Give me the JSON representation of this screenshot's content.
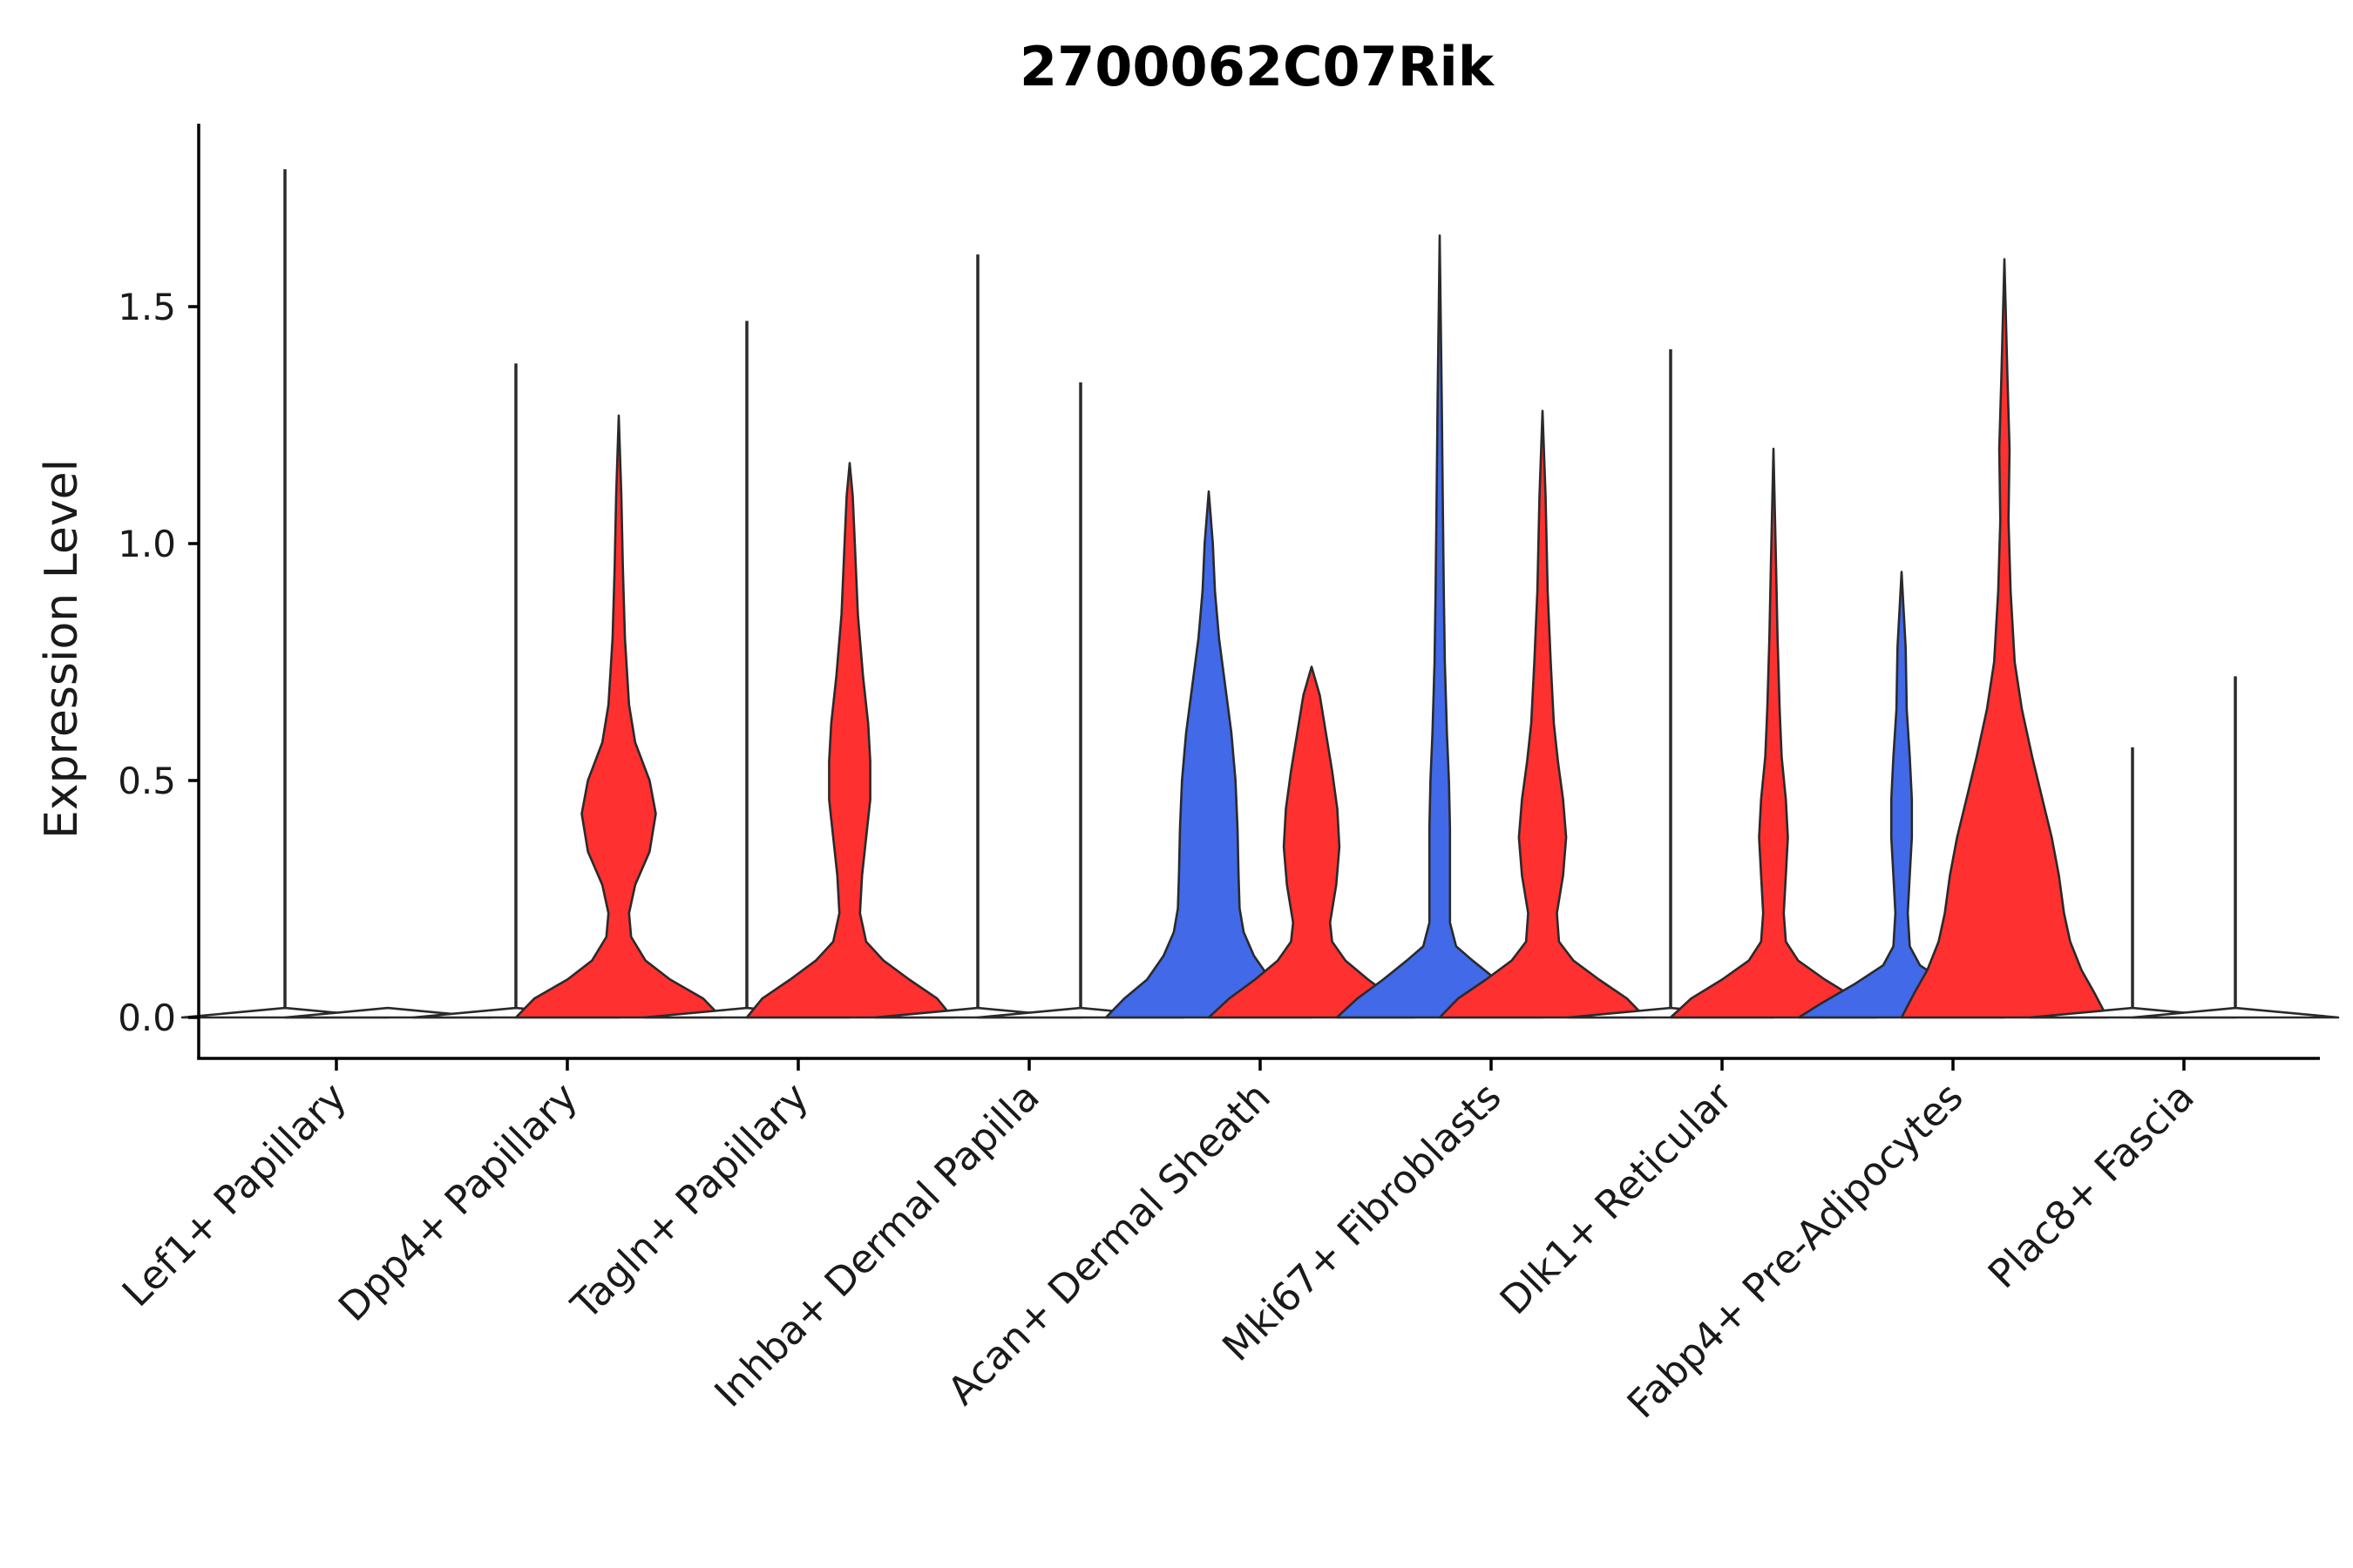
{
  "chart_data": {
    "type": "violin",
    "title": "2700062C07Rik",
    "xlabel": "",
    "ylabel": "Expression Level",
    "ylim": [
      -0.09,
      1.88
    ],
    "yticks": [
      0.0,
      0.5,
      1.0,
      1.5
    ],
    "ytick_labels": [
      "0.0",
      "0.5",
      "1.0",
      "1.5"
    ],
    "grid": false,
    "colors": {
      "blue": "#4169e8",
      "red": "#ff3030",
      "outline": "#2a2a2a"
    },
    "categories": [
      "Lef1+ Papillary",
      "Dpp4+ Papillary",
      "Tagln+ Papillary",
      "Inhba+ Dermal Papilla",
      "Acan+ Dermal Sheath",
      "Mki67+ Fibroblasts",
      "Dlk1+ Reticular",
      "Fabp4+ Pre-Adipocytes",
      "Plac8+ Fascia"
    ],
    "violins": [
      {
        "category": 0,
        "side": "left",
        "color": "none",
        "max": 1.79,
        "profile": [
          [
            0,
            1
          ],
          [
            0.02,
            0
          ]
        ],
        "whisker_min": 0.02
      },
      {
        "category": 0,
        "side": "right",
        "color": "none",
        "max": 0.0,
        "profile": [
          [
            0,
            1
          ],
          [
            0.02,
            0
          ]
        ]
      },
      {
        "category": 1,
        "side": "left",
        "color": "none",
        "max": 1.38,
        "profile": [
          [
            0,
            1
          ],
          [
            0.02,
            0
          ]
        ],
        "whisker_min": 0.02
      },
      {
        "category": 1,
        "side": "right",
        "color": "red",
        "max": 1.27,
        "profile": [
          [
            0,
            1
          ],
          [
            0.04,
            0.82
          ],
          [
            0.08,
            0.5
          ],
          [
            0.12,
            0.26
          ],
          [
            0.17,
            0.12
          ],
          [
            0.22,
            0.1
          ],
          [
            0.28,
            0.16
          ],
          [
            0.35,
            0.3
          ],
          [
            0.43,
            0.36
          ],
          [
            0.5,
            0.3
          ],
          [
            0.58,
            0.16
          ],
          [
            0.66,
            0.1
          ],
          [
            0.8,
            0.06
          ],
          [
            0.95,
            0.04
          ],
          [
            1.1,
            0.025
          ],
          [
            1.27,
            0
          ]
        ]
      },
      {
        "category": 2,
        "side": "left",
        "color": "none",
        "max": 1.47,
        "profile": [
          [
            0,
            1
          ],
          [
            0.02,
            0
          ]
        ],
        "whisker_min": 0.02
      },
      {
        "category": 2,
        "side": "right",
        "color": "red",
        "max": 1.17,
        "profile": [
          [
            0,
            1
          ],
          [
            0.04,
            0.85
          ],
          [
            0.08,
            0.58
          ],
          [
            0.12,
            0.33
          ],
          [
            0.16,
            0.16
          ],
          [
            0.22,
            0.1
          ],
          [
            0.3,
            0.12
          ],
          [
            0.38,
            0.16
          ],
          [
            0.46,
            0.2
          ],
          [
            0.54,
            0.2
          ],
          [
            0.62,
            0.18
          ],
          [
            0.72,
            0.13
          ],
          [
            0.85,
            0.08
          ],
          [
            1.0,
            0.05
          ],
          [
            1.1,
            0.03
          ],
          [
            1.17,
            0
          ]
        ]
      },
      {
        "category": 3,
        "side": "left",
        "color": "none",
        "max": 1.61,
        "profile": [
          [
            0,
            1
          ],
          [
            0.02,
            0
          ]
        ],
        "whisker_min": 0.02
      },
      {
        "category": 3,
        "side": "right",
        "color": "none",
        "max": 1.34,
        "profile": [
          [
            0,
            1
          ],
          [
            0.02,
            0
          ]
        ],
        "whisker_min": 0.02
      },
      {
        "category": 4,
        "side": "left",
        "color": "blue",
        "max": 1.11,
        "profile": [
          [
            0,
            1
          ],
          [
            0.04,
            0.82
          ],
          [
            0.08,
            0.6
          ],
          [
            0.13,
            0.44
          ],
          [
            0.18,
            0.34
          ],
          [
            0.23,
            0.3
          ],
          [
            0.3,
            0.29
          ],
          [
            0.4,
            0.28
          ],
          [
            0.5,
            0.26
          ],
          [
            0.6,
            0.22
          ],
          [
            0.7,
            0.16
          ],
          [
            0.8,
            0.1
          ],
          [
            0.9,
            0.06
          ],
          [
            1.0,
            0.04
          ],
          [
            1.11,
            0
          ]
        ]
      },
      {
        "category": 4,
        "side": "right",
        "color": "red",
        "max": 0.74,
        "profile": [
          [
            0,
            1
          ],
          [
            0.04,
            0.8
          ],
          [
            0.08,
            0.55
          ],
          [
            0.12,
            0.33
          ],
          [
            0.16,
            0.2
          ],
          [
            0.2,
            0.18
          ],
          [
            0.28,
            0.24
          ],
          [
            0.36,
            0.27
          ],
          [
            0.44,
            0.25
          ],
          [
            0.52,
            0.2
          ],
          [
            0.6,
            0.14
          ],
          [
            0.68,
            0.08
          ],
          [
            0.74,
            0
          ]
        ]
      },
      {
        "category": 5,
        "side": "left",
        "color": "blue",
        "max": 1.65,
        "profile": [
          [
            0,
            1
          ],
          [
            0.04,
            0.8
          ],
          [
            0.08,
            0.55
          ],
          [
            0.12,
            0.32
          ],
          [
            0.15,
            0.16
          ],
          [
            0.2,
            0.1
          ],
          [
            0.3,
            0.1
          ],
          [
            0.4,
            0.1
          ],
          [
            0.5,
            0.09
          ],
          [
            0.6,
            0.07
          ],
          [
            0.75,
            0.05
          ],
          [
            0.9,
            0.04
          ],
          [
            1.1,
            0.03
          ],
          [
            1.3,
            0.02
          ],
          [
            1.65,
            0
          ]
        ]
      },
      {
        "category": 5,
        "side": "right",
        "color": "red",
        "max": 1.28,
        "profile": [
          [
            0,
            1
          ],
          [
            0.04,
            0.82
          ],
          [
            0.08,
            0.55
          ],
          [
            0.12,
            0.3
          ],
          [
            0.16,
            0.16
          ],
          [
            0.22,
            0.14
          ],
          [
            0.3,
            0.2
          ],
          [
            0.38,
            0.23
          ],
          [
            0.46,
            0.2
          ],
          [
            0.54,
            0.15
          ],
          [
            0.62,
            0.11
          ],
          [
            0.75,
            0.08
          ],
          [
            0.9,
            0.05
          ],
          [
            1.1,
            0.03
          ],
          [
            1.28,
            0
          ]
        ]
      },
      {
        "category": 6,
        "side": "left",
        "color": "none",
        "max": 1.41,
        "profile": [
          [
            0,
            1
          ],
          [
            0.02,
            0
          ]
        ],
        "whisker_min": 0.02
      },
      {
        "category": 6,
        "side": "right",
        "color": "red",
        "max": 1.2,
        "profile": [
          [
            0,
            1
          ],
          [
            0.04,
            0.8
          ],
          [
            0.08,
            0.5
          ],
          [
            0.12,
            0.24
          ],
          [
            0.16,
            0.12
          ],
          [
            0.22,
            0.1
          ],
          [
            0.3,
            0.12
          ],
          [
            0.38,
            0.14
          ],
          [
            0.46,
            0.12
          ],
          [
            0.55,
            0.08
          ],
          [
            0.65,
            0.06
          ],
          [
            0.8,
            0.04
          ],
          [
            0.95,
            0.025
          ],
          [
            1.2,
            0
          ]
        ]
      },
      {
        "category": 7,
        "side": "left",
        "color": "blue",
        "max": 0.94,
        "profile": [
          [
            0,
            1
          ],
          [
            0.03,
            0.78
          ],
          [
            0.07,
            0.46
          ],
          [
            0.11,
            0.18
          ],
          [
            0.15,
            0.08
          ],
          [
            0.22,
            0.06
          ],
          [
            0.3,
            0.08
          ],
          [
            0.38,
            0.1
          ],
          [
            0.46,
            0.1
          ],
          [
            0.55,
            0.08
          ],
          [
            0.65,
            0.05
          ],
          [
            0.78,
            0.04
          ],
          [
            0.94,
            0
          ]
        ]
      },
      {
        "category": 7,
        "side": "right",
        "color": "red",
        "max": 1.6,
        "profile": [
          [
            0,
            1
          ],
          [
            0.05,
            0.88
          ],
          [
            0.1,
            0.75
          ],
          [
            0.16,
            0.64
          ],
          [
            0.22,
            0.58
          ],
          [
            0.3,
            0.53
          ],
          [
            0.38,
            0.46
          ],
          [
            0.46,
            0.37
          ],
          [
            0.55,
            0.27
          ],
          [
            0.65,
            0.17
          ],
          [
            0.75,
            0.1
          ],
          [
            0.9,
            0.06
          ],
          [
            1.05,
            0.04
          ],
          [
            1.2,
            0.05
          ],
          [
            1.35,
            0.03
          ],
          [
            1.6,
            0
          ]
        ]
      },
      {
        "category": 8,
        "side": "left",
        "color": "none",
        "max": 0.57,
        "profile": [
          [
            0,
            1
          ],
          [
            0.02,
            0
          ]
        ],
        "whisker_min": 0.02
      },
      {
        "category": 8,
        "side": "right",
        "color": "none",
        "max": 0.72,
        "profile": [
          [
            0,
            1
          ],
          [
            0.02,
            0
          ]
        ],
        "whisker_min": 0.02
      }
    ]
  }
}
